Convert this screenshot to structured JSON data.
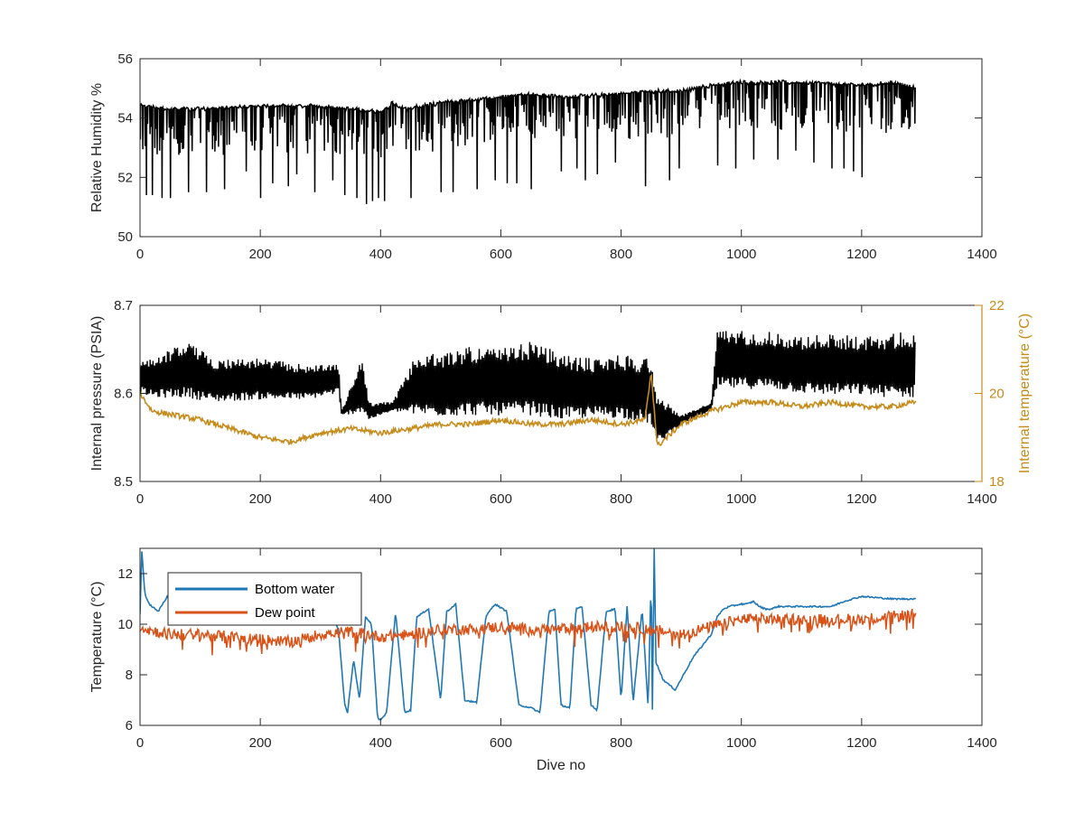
{
  "chart_data": [
    {
      "type": "line",
      "title": "",
      "xlabel": "",
      "ylabel": "Relative Humidity %",
      "xlim": [
        0,
        1400
      ],
      "ylim": [
        50,
        56
      ],
      "xticks": [
        "0",
        "200",
        "400",
        "600",
        "800",
        "1000",
        "1200",
        "1400"
      ],
      "yticks": [
        "50",
        "52",
        "54",
        "56"
      ],
      "grid": false,
      "series": [
        {
          "name": "",
          "color": "#000000",
          "style": "dense-downward-spikes",
          "baseline": {
            "x": [
              0,
              50,
              100,
              200,
              300,
              350,
              400,
              420,
              440,
              500,
              600,
              650,
              700,
              800,
              850,
              900,
              950,
              1000,
              1100,
              1200,
              1250,
              1290
            ],
            "y": [
              54.4,
              54.3,
              54.3,
              54.4,
              54.4,
              54.3,
              54.2,
              54.5,
              54.3,
              54.5,
              54.7,
              54.8,
              54.7,
              54.8,
              54.9,
              54.9,
              55.1,
              55.2,
              55.2,
              55.1,
              55.2,
              55.0
            ]
          },
          "dips": {
            "x": [
              10,
              20,
              35,
              50,
              80,
              110,
              140,
              175,
              200,
              220,
              245,
              260,
              290,
              320,
              340,
              360,
              375,
              385,
              395,
              405,
              450,
              500,
              520,
              560,
              590,
              610,
              625,
              650,
              700,
              725,
              740,
              760,
              790,
              840,
              880,
              895,
              960,
              990,
              1020,
              1060,
              1090,
              1120,
              1150,
              1170,
              1185,
              1200,
              1240,
              1280
            ],
            "y": [
              51.4,
              51.4,
              51.3,
              51.3,
              51.5,
              51.5,
              51.6,
              52.2,
              51.3,
              51.8,
              51.7,
              52.1,
              51.5,
              51.9,
              51.4,
              51.3,
              51.1,
              51.2,
              51.3,
              51.2,
              51.3,
              51.5,
              51.5,
              51.6,
              51.9,
              51.8,
              51.8,
              51.6,
              52.2,
              52.3,
              51.9,
              52.1,
              52.5,
              51.7,
              51.9,
              52.3,
              52.4,
              52.3,
              52.6,
              52.6,
              52.9,
              52.5,
              52.3,
              52.3,
              52.2,
              52.0,
              53.5,
              53.7
            ]
          }
        }
      ]
    },
    {
      "type": "line",
      "title": "",
      "xlabel": "",
      "ylabel": "Internal pressure (PSIA)",
      "ylabel_right": "Internal temperature (°C)",
      "xlim": [
        0,
        1400
      ],
      "ylim": [
        8.5,
        8.7
      ],
      "ylim_right": [
        18,
        22
      ],
      "xticks": [
        "0",
        "200",
        "400",
        "600",
        "800",
        "1000",
        "1200",
        "1400"
      ],
      "yticks": [
        "8.5",
        "8.6",
        "8.7"
      ],
      "yticks_right": [
        "18",
        "20",
        "22"
      ],
      "right_axis_color": "#C58B1B",
      "grid": false,
      "series": [
        {
          "name": "",
          "axis": "left",
          "color": "#000000",
          "style": "dense-band",
          "x": [
            0,
            20,
            80,
            120,
            200,
            280,
            330,
            335,
            370,
            380,
            420,
            460,
            500,
            550,
            600,
            650,
            700,
            750,
            800,
            850,
            860,
            900,
            950,
            960,
            1000,
            1050,
            1100,
            1150,
            1200,
            1250,
            1290
          ],
          "low": [
            8.6,
            8.595,
            8.595,
            8.59,
            8.593,
            8.593,
            8.6,
            8.575,
            8.578,
            8.57,
            8.58,
            8.575,
            8.574,
            8.575,
            8.575,
            8.575,
            8.57,
            8.572,
            8.572,
            8.565,
            8.54,
            8.565,
            8.58,
            8.605,
            8.605,
            8.605,
            8.6,
            8.598,
            8.598,
            8.595,
            8.595
          ],
          "high": [
            8.64,
            8.64,
            8.66,
            8.64,
            8.64,
            8.632,
            8.635,
            8.58,
            8.643,
            8.59,
            8.59,
            8.645,
            8.645,
            8.655,
            8.65,
            8.66,
            8.645,
            8.64,
            8.645,
            8.64,
            8.6,
            8.575,
            8.59,
            8.672,
            8.672,
            8.67,
            8.665,
            8.668,
            8.665,
            8.668,
            8.672
          ]
        },
        {
          "name": "",
          "axis": "right",
          "color": "#C58B1B",
          "style": "line",
          "x": [
            0,
            20,
            60,
            100,
            150,
            200,
            250,
            300,
            350,
            400,
            450,
            500,
            550,
            600,
            650,
            700,
            750,
            800,
            840,
            850,
            860,
            900,
            950,
            1000,
            1050,
            1100,
            1150,
            1200,
            1250,
            1290
          ],
          "y": [
            20.0,
            19.6,
            19.5,
            19.4,
            19.2,
            19.0,
            18.9,
            19.1,
            19.2,
            19.1,
            19.2,
            19.3,
            19.3,
            19.4,
            19.3,
            19.3,
            19.4,
            19.3,
            19.4,
            20.5,
            18.8,
            19.3,
            19.6,
            19.8,
            19.8,
            19.7,
            19.8,
            19.7,
            19.7,
            19.8
          ]
        }
      ]
    },
    {
      "type": "line",
      "title": "",
      "xlabel": "Dive no",
      "ylabel": "Temperature (°C)",
      "xlim": [
        0,
        1400
      ],
      "ylim": [
        6,
        13
      ],
      "xticks": [
        "0",
        "200",
        "400",
        "600",
        "800",
        "1000",
        "1200",
        "1400"
      ],
      "yticks": [
        "6",
        "8",
        "10",
        "12"
      ],
      "grid": false,
      "legend": "top-left",
      "series": [
        {
          "name": "Bottom water",
          "color": "#1F77B4",
          "style": "line",
          "x": [
            0,
            3,
            8,
            15,
            30,
            45,
            60,
            100,
            150,
            200,
            250,
            300,
            320,
            330,
            340,
            345,
            355,
            365,
            375,
            385,
            395,
            400,
            410,
            425,
            440,
            450,
            460,
            480,
            500,
            510,
            525,
            540,
            560,
            575,
            590,
            610,
            630,
            650,
            665,
            680,
            690,
            700,
            715,
            725,
            735,
            750,
            760,
            775,
            790,
            800,
            810,
            820,
            835,
            845,
            850,
            852,
            855,
            858,
            870,
            890,
            920,
            950,
            960,
            970,
            980,
            1000,
            1010,
            1020,
            1030,
            1040,
            1050,
            1060,
            1100,
            1150,
            1170,
            1200,
            1250,
            1290
          ],
          "y": [
            10.4,
            12.9,
            11.2,
            10.8,
            10.5,
            11.1,
            10.6,
            10.5,
            10.5,
            10.6,
            10.5,
            10.5,
            10.3,
            9.8,
            6.9,
            6.5,
            8.6,
            7.0,
            10.3,
            10.0,
            6.3,
            6.2,
            6.5,
            10.5,
            6.5,
            6.6,
            10.3,
            10.6,
            7.0,
            10.5,
            10.8,
            7.0,
            6.9,
            10.3,
            10.8,
            10.5,
            6.8,
            6.7,
            6.5,
            10.5,
            10.6,
            6.8,
            6.7,
            10.6,
            10.7,
            6.8,
            6.6,
            10.5,
            10.6,
            7.0,
            10.7,
            6.9,
            10.6,
            6.7,
            12.0,
            6.6,
            13.0,
            8.5,
            7.8,
            7.4,
            8.7,
            9.6,
            10.3,
            10.6,
            10.7,
            10.8,
            10.8,
            10.9,
            10.7,
            10.6,
            10.6,
            10.7,
            10.7,
            10.7,
            10.9,
            11.1,
            11.0,
            11.0
          ]
        },
        {
          "name": "Dew point",
          "color": "#D95319",
          "style": "noisy-line",
          "x": [
            0,
            10,
            50,
            100,
            150,
            200,
            250,
            300,
            350,
            380,
            400,
            450,
            500,
            550,
            600,
            650,
            700,
            750,
            800,
            850,
            900,
            950,
            1000,
            1050,
            1100,
            1150,
            1200,
            1250,
            1290
          ],
          "y": [
            10.0,
            9.8,
            9.6,
            9.6,
            9.5,
            9.4,
            9.3,
            9.6,
            9.7,
            9.6,
            9.5,
            9.6,
            9.8,
            9.8,
            9.9,
            9.8,
            9.8,
            9.9,
            9.9,
            9.8,
            9.6,
            9.9,
            10.2,
            10.2,
            10.2,
            10.2,
            10.2,
            10.3,
            10.4
          ]
        }
      ]
    }
  ]
}
